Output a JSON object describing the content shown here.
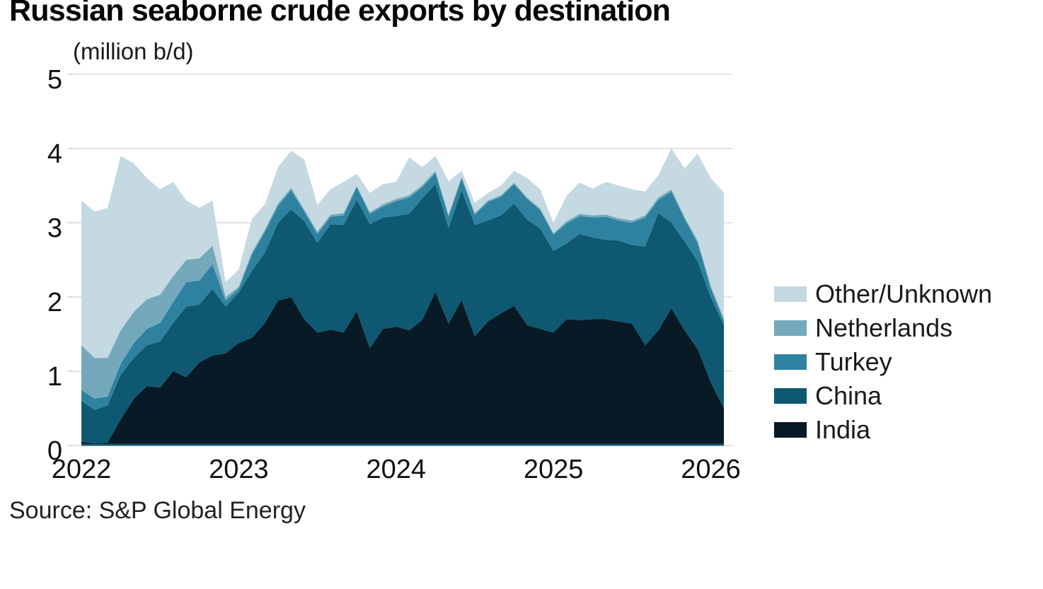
{
  "title": "Russian seaborne crude exports by destination",
  "units_label": "(million b/d)",
  "source": "Source: S&P Global Energy",
  "chart_data": {
    "type": "area",
    "stacked": true,
    "title": "Russian seaborne crude exports by destination",
    "ylabel": "(million b/d)",
    "x_frequency": "monthly",
    "x_start": "2022-01",
    "x_end": "2026-02",
    "x_tick_labels": [
      "2022",
      "2023",
      "2024",
      "2025",
      "2026"
    ],
    "x_tick_month_indices": [
      0,
      12,
      24,
      36,
      48
    ],
    "ylim": [
      0,
      5
    ],
    "y_ticks": [
      0,
      1,
      2,
      3,
      4,
      5
    ],
    "grid": "horizontal",
    "legend_position": "right",
    "legend_order_top_to_bottom": [
      "Other/Unknown",
      "Netherlands",
      "Turkey",
      "China",
      "India"
    ],
    "series": [
      {
        "name": "India",
        "color": "#081a25",
        "values": [
          0.05,
          0.03,
          0.04,
          0.35,
          0.63,
          0.8,
          0.78,
          1.0,
          0.92,
          1.12,
          1.21,
          1.24,
          1.38,
          1.45,
          1.65,
          1.95,
          2.0,
          1.7,
          1.52,
          1.56,
          1.52,
          1.81,
          1.31,
          1.57,
          1.6,
          1.55,
          1.69,
          2.07,
          1.64,
          1.96,
          1.47,
          1.67,
          1.78,
          1.88,
          1.62,
          1.57,
          1.52,
          1.7,
          1.69,
          1.7,
          1.7,
          1.67,
          1.64,
          1.35,
          1.55,
          1.85,
          1.55,
          1.3,
          0.85,
          0.5
        ]
      },
      {
        "name": "China",
        "color": "#0e5871",
        "values": [
          0.55,
          0.45,
          0.5,
          0.6,
          0.55,
          0.55,
          0.62,
          0.65,
          0.95,
          0.78,
          0.9,
          0.63,
          0.68,
          0.9,
          0.95,
          1.05,
          1.18,
          1.32,
          1.21,
          1.42,
          1.45,
          1.5,
          1.67,
          1.5,
          1.49,
          1.57,
          1.64,
          1.45,
          1.29,
          1.48,
          1.5,
          1.36,
          1.32,
          1.38,
          1.42,
          1.35,
          1.1,
          1.02,
          1.16,
          1.1,
          1.07,
          1.09,
          1.06,
          1.33,
          1.58,
          1.15,
          1.2,
          1.18,
          1.15,
          1.12
        ]
      },
      {
        "name": "Turkey",
        "color": "#2e82a0",
        "values": [
          0.15,
          0.15,
          0.12,
          0.15,
          0.2,
          0.22,
          0.25,
          0.28,
          0.33,
          0.32,
          0.33,
          0.08,
          0.05,
          0.22,
          0.28,
          0.23,
          0.26,
          0.13,
          0.12,
          0.1,
          0.13,
          0.17,
          0.14,
          0.15,
          0.2,
          0.22,
          0.15,
          0.15,
          0.15,
          0.16,
          0.14,
          0.25,
          0.25,
          0.26,
          0.28,
          0.25,
          0.22,
          0.27,
          0.24,
          0.27,
          0.31,
          0.27,
          0.3,
          0.39,
          0.18,
          0.42,
          0.3,
          0.25,
          0.12,
          0.06
        ]
      },
      {
        "name": "Netherlands",
        "color": "#74a9bb",
        "values": [
          0.6,
          0.55,
          0.52,
          0.45,
          0.42,
          0.4,
          0.38,
          0.35,
          0.3,
          0.3,
          0.25,
          0.05,
          0.03,
          0.03,
          0.03,
          0.03,
          0.03,
          0.03,
          0.03,
          0.03,
          0.03,
          0.02,
          0.02,
          0.03,
          0.03,
          0.03,
          0.03,
          0.03,
          0.03,
          0.02,
          0.02,
          0.02,
          0.02,
          0.02,
          0.02,
          0.02,
          0.02,
          0.03,
          0.03,
          0.03,
          0.03,
          0.03,
          0.03,
          0.03,
          0.03,
          0.03,
          0.03,
          0.03,
          0.03,
          0.03
        ]
      },
      {
        "name": "Other/Unknown",
        "color": "#c4d9e1",
        "values": [
          1.95,
          1.97,
          2.02,
          2.35,
          2.0,
          1.63,
          1.42,
          1.27,
          0.8,
          0.68,
          0.61,
          0.2,
          0.23,
          0.45,
          0.34,
          0.49,
          0.5,
          0.67,
          0.36,
          0.34,
          0.42,
          0.16,
          0.26,
          0.27,
          0.23,
          0.51,
          0.24,
          0.2,
          0.45,
          0.08,
          0.14,
          0.1,
          0.13,
          0.16,
          0.26,
          0.26,
          0.14,
          0.34,
          0.42,
          0.36,
          0.44,
          0.44,
          0.42,
          0.32,
          0.3,
          0.55,
          0.65,
          1.17,
          1.45,
          1.7
        ]
      }
    ],
    "colors": {
      "gridline": "#d8dcde",
      "axis_baseline": "#16566d",
      "tick_text": "#111111"
    }
  }
}
